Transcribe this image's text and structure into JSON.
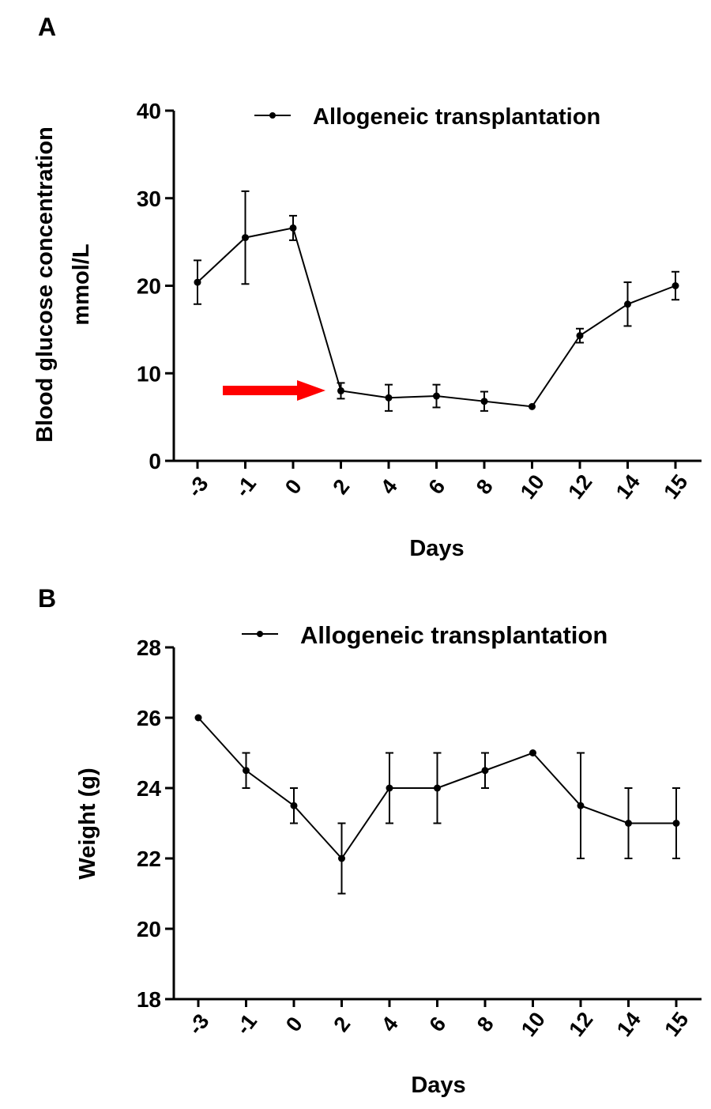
{
  "colors": {
    "ink": "#000000",
    "arrow": "#ff0000",
    "background": "#ffffff"
  },
  "chart_data": [
    {
      "panel_label": "A",
      "type": "line",
      "categories": [
        "-3",
        "-1",
        "0",
        "2",
        "4",
        "6",
        "8",
        "10",
        "12",
        "14",
        "15"
      ],
      "series": [
        {
          "name": "Allogeneic transplantation",
          "values": [
            20.4,
            25.5,
            26.6,
            8.0,
            7.2,
            7.4,
            6.8,
            6.2,
            14.3,
            17.9,
            20.0
          ],
          "errors": [
            2.5,
            5.3,
            1.4,
            0.9,
            1.5,
            1.3,
            1.1,
            0,
            0.8,
            2.5,
            1.6
          ]
        }
      ],
      "title": "",
      "xlabel": "Days",
      "ylabel": "Blood glucose concentration",
      "ylabel_unit": "mmol/L",
      "ylim": [
        0,
        40
      ],
      "yticks": [
        "0",
        "10",
        "20",
        "30",
        "40"
      ],
      "legend": "top-right",
      "grid": false,
      "annotations": [
        {
          "type": "arrow",
          "color": "#ff0000",
          "points_to_category": "2"
        }
      ]
    },
    {
      "panel_label": "B",
      "type": "line",
      "categories": [
        "-3",
        "-1",
        "0",
        "2",
        "4",
        "6",
        "8",
        "10",
        "12",
        "14",
        "15"
      ],
      "series": [
        {
          "name": "Allogeneic transplantation",
          "values": [
            26,
            24.5,
            23.5,
            22,
            24,
            24,
            24.5,
            25,
            23.5,
            23,
            23
          ],
          "errors": [
            0,
            0.5,
            0.5,
            1,
            1,
            1,
            0.5,
            0,
            1.5,
            1,
            1
          ]
        }
      ],
      "title": "",
      "xlabel": "Days",
      "ylabel": "Weight (g)",
      "ylim": [
        18,
        28
      ],
      "yticks": [
        "18",
        "20",
        "22",
        "24",
        "26",
        "28"
      ],
      "legend": "top-right",
      "grid": false
    }
  ]
}
